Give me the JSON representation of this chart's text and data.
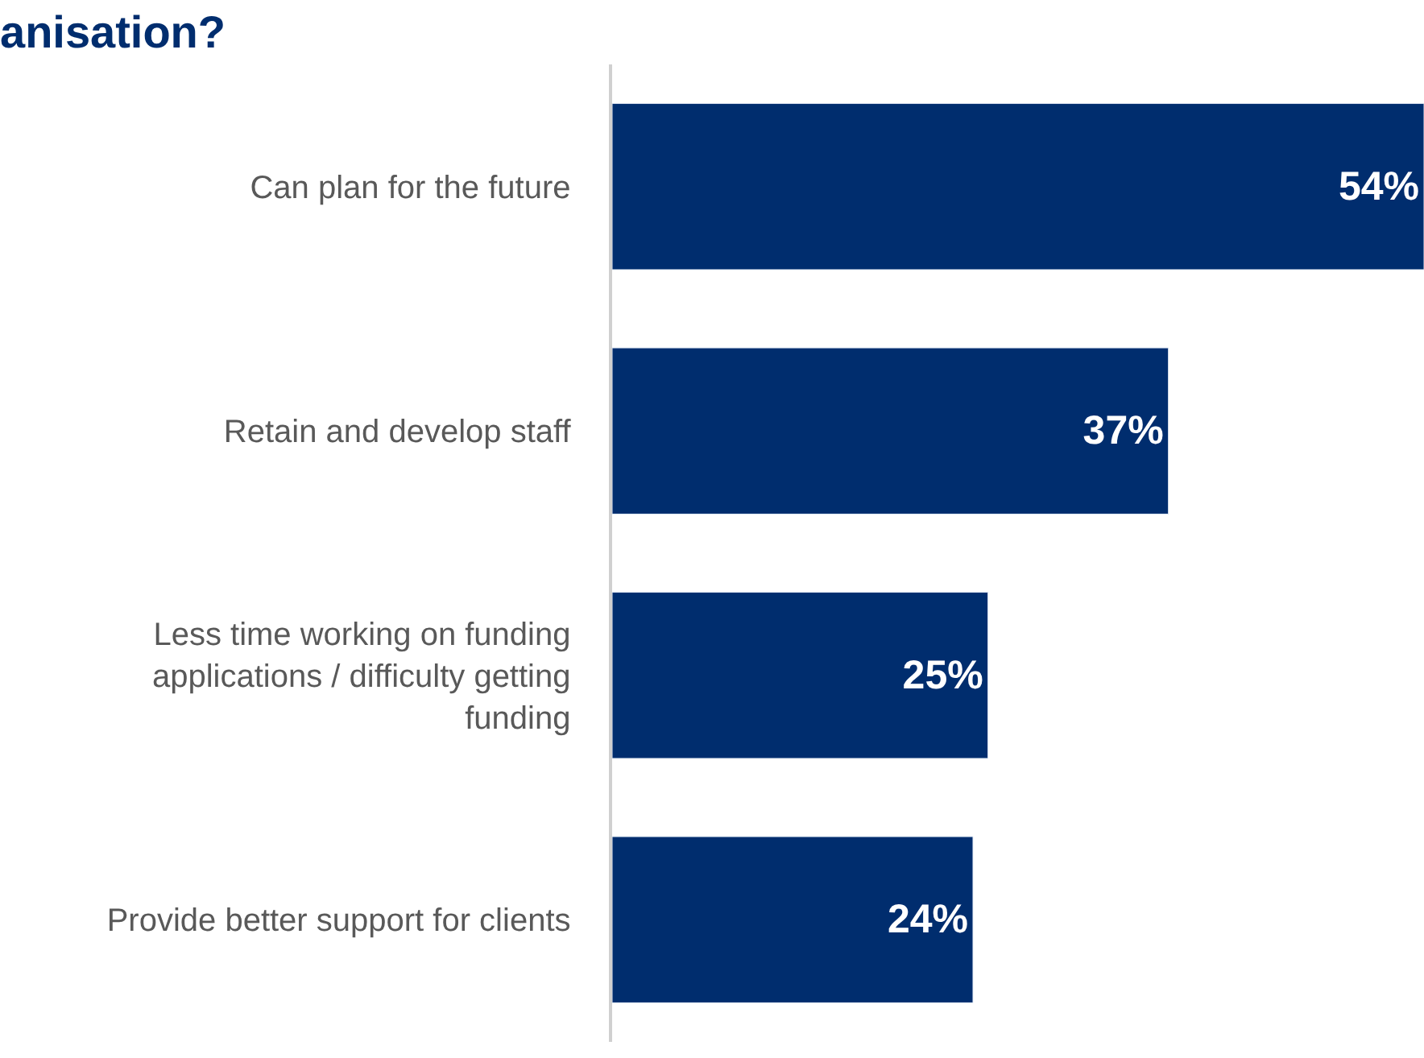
{
  "chart_data": {
    "type": "bar",
    "orientation": "horizontal",
    "title": "anisation?",
    "categories": [
      "Can plan for the future",
      "Retain and develop staff",
      "Less time working on funding applications / difficulty getting funding",
      "Provide better support for clients"
    ],
    "values": [
      54,
      37,
      25,
      24
    ],
    "value_labels": [
      "54%",
      "37%",
      "25%",
      "24%"
    ],
    "color": "#002d6e"
  }
}
